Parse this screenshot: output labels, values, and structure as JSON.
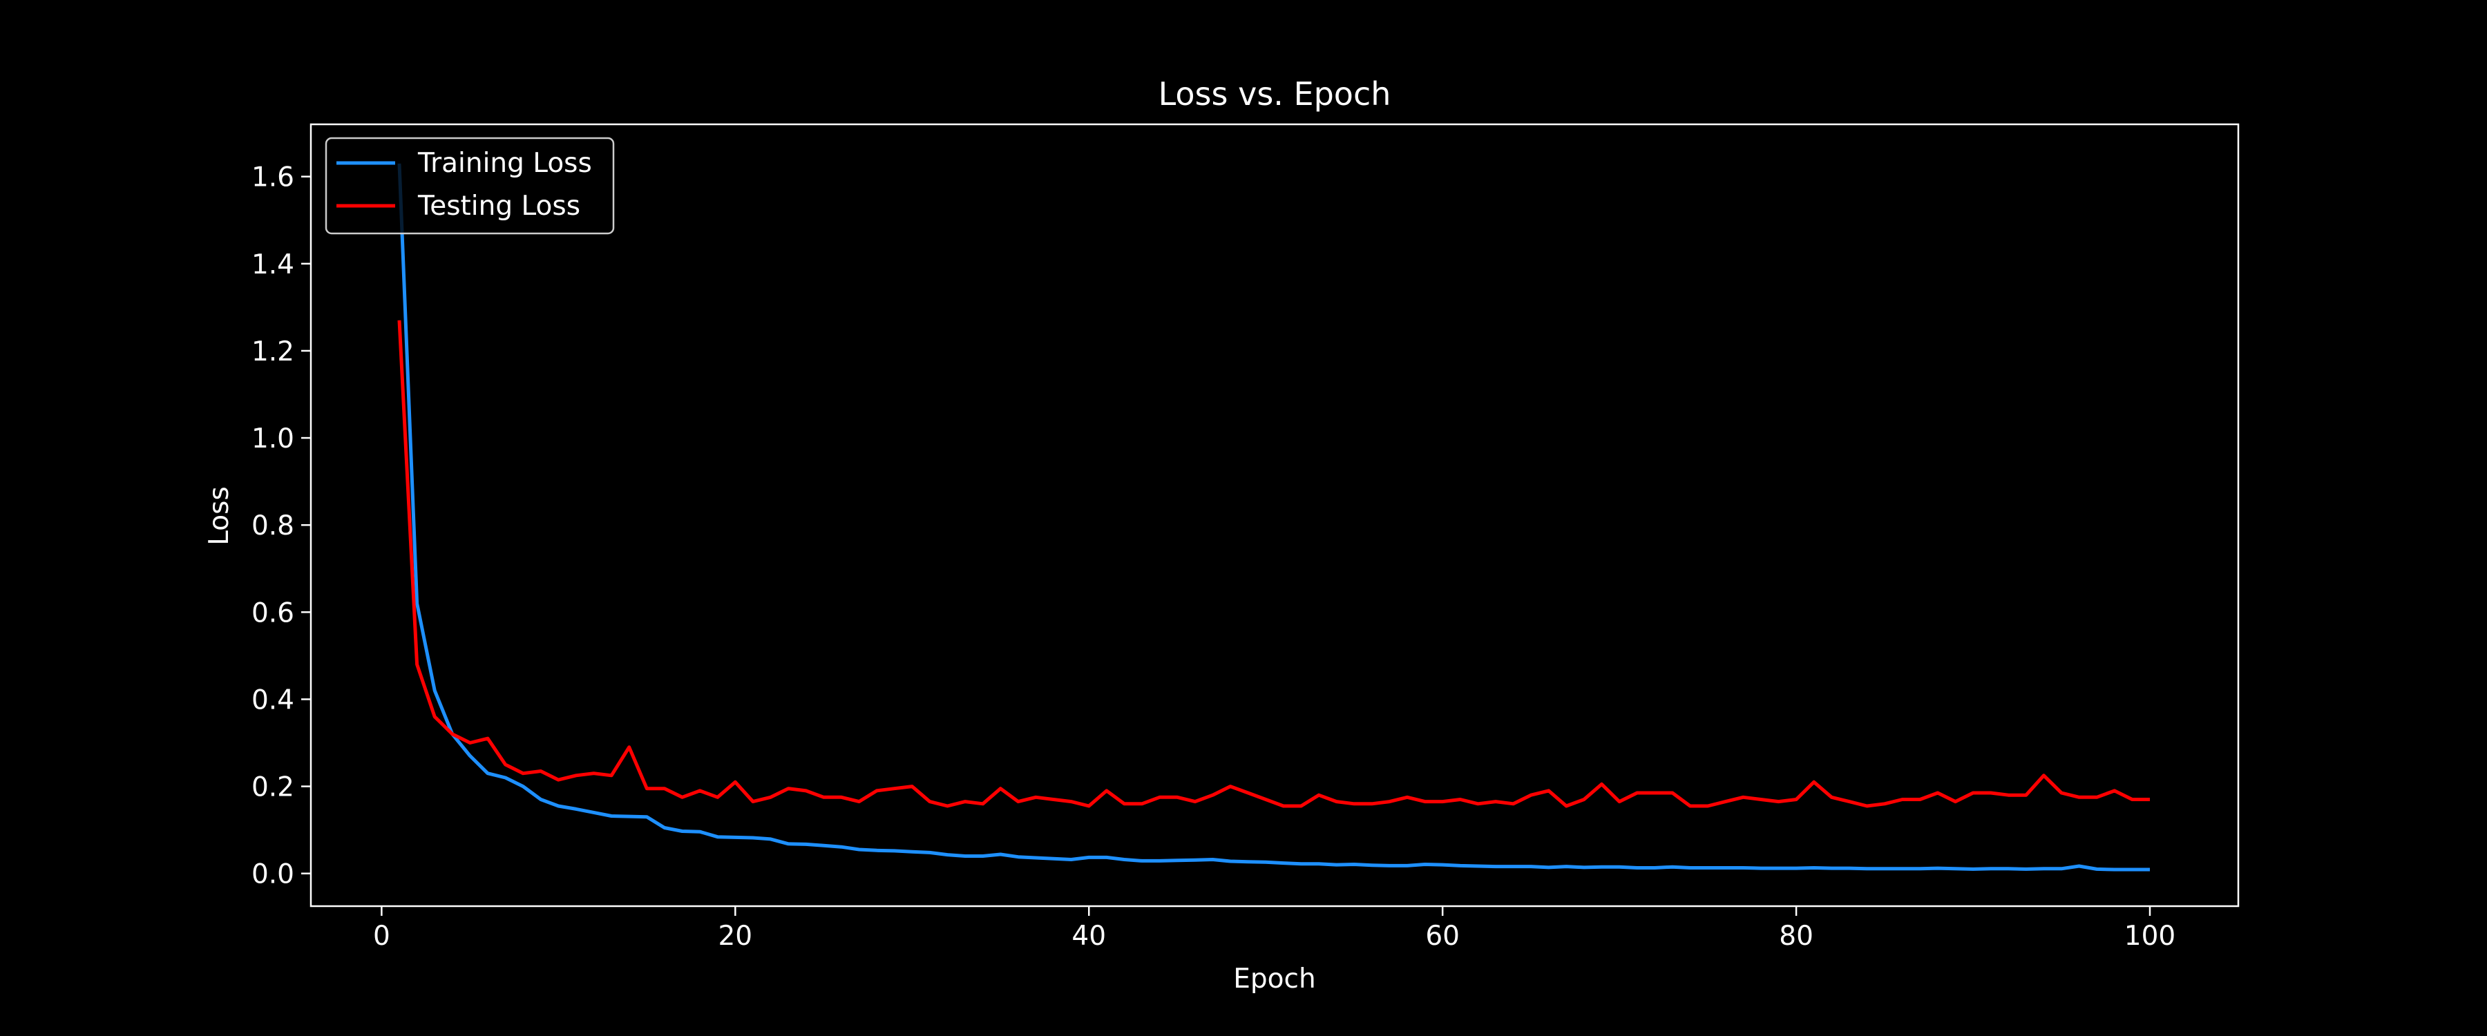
{
  "chart_data": {
    "type": "line",
    "title": "Loss vs. Epoch",
    "xlabel": "Epoch",
    "ylabel": "Loss",
    "xlim": [
      -4,
      105
    ],
    "ylim": [
      -0.075,
      1.72
    ],
    "xticks": [
      0,
      20,
      40,
      60,
      80,
      100
    ],
    "yticks": [
      0.0,
      0.2,
      0.4,
      0.6,
      0.8,
      1.0,
      1.2,
      1.4,
      1.6
    ],
    "grid": false,
    "legend_position": "top-left",
    "x": [
      1,
      2,
      3,
      4,
      5,
      6,
      7,
      8,
      9,
      10,
      11,
      12,
      13,
      14,
      15,
      16,
      17,
      18,
      19,
      20,
      21,
      22,
      23,
      24,
      25,
      26,
      27,
      28,
      29,
      30,
      31,
      32,
      33,
      34,
      35,
      36,
      37,
      38,
      39,
      40,
      41,
      42,
      43,
      44,
      45,
      46,
      47,
      48,
      49,
      50,
      51,
      52,
      53,
      54,
      55,
      56,
      57,
      58,
      59,
      60,
      61,
      62,
      63,
      64,
      65,
      66,
      67,
      68,
      69,
      70,
      71,
      72,
      73,
      74,
      75,
      76,
      77,
      78,
      79,
      80,
      81,
      82,
      83,
      84,
      85,
      86,
      87,
      88,
      89,
      90,
      91,
      92,
      93,
      94,
      95,
      96,
      97,
      98,
      99,
      100
    ],
    "series": [
      {
        "name": "Training Loss",
        "color": "#1e90ff",
        "values": [
          1.63,
          0.62,
          0.42,
          0.32,
          0.27,
          0.23,
          0.22,
          0.2,
          0.17,
          0.155,
          0.148,
          0.14,
          0.132,
          0.131,
          0.13,
          0.105,
          0.097,
          0.096,
          0.084,
          0.083,
          0.082,
          0.079,
          0.068,
          0.067,
          0.064,
          0.061,
          0.055,
          0.053,
          0.052,
          0.05,
          0.048,
          0.043,
          0.04,
          0.04,
          0.044,
          0.038,
          0.036,
          0.034,
          0.032,
          0.037,
          0.037,
          0.032,
          0.029,
          0.029,
          0.03,
          0.031,
          0.032,
          0.028,
          0.027,
          0.026,
          0.024,
          0.022,
          0.022,
          0.02,
          0.021,
          0.019,
          0.018,
          0.018,
          0.021,
          0.02,
          0.018,
          0.017,
          0.016,
          0.016,
          0.016,
          0.014,
          0.016,
          0.014,
          0.015,
          0.015,
          0.013,
          0.013,
          0.015,
          0.013,
          0.013,
          0.013,
          0.013,
          0.012,
          0.012,
          0.012,
          0.013,
          0.012,
          0.012,
          0.011,
          0.011,
          0.011,
          0.011,
          0.012,
          0.011,
          0.01,
          0.011,
          0.011,
          0.01,
          0.011,
          0.011,
          0.017,
          0.01,
          0.009,
          0.009,
          0.009
        ]
      },
      {
        "name": "Testing Loss",
        "color": "#ff0000",
        "values": [
          1.27,
          0.48,
          0.36,
          0.32,
          0.3,
          0.31,
          0.25,
          0.23,
          0.235,
          0.215,
          0.225,
          0.23,
          0.225,
          0.29,
          0.195,
          0.195,
          0.175,
          0.19,
          0.175,
          0.21,
          0.165,
          0.175,
          0.195,
          0.19,
          0.175,
          0.175,
          0.165,
          0.19,
          0.195,
          0.2,
          0.165,
          0.155,
          0.165,
          0.16,
          0.195,
          0.165,
          0.175,
          0.17,
          0.165,
          0.155,
          0.19,
          0.16,
          0.16,
          0.175,
          0.175,
          0.165,
          0.18,
          0.2,
          0.185,
          0.17,
          0.155,
          0.155,
          0.18,
          0.165,
          0.16,
          0.16,
          0.165,
          0.175,
          0.165,
          0.165,
          0.17,
          0.16,
          0.165,
          0.16,
          0.18,
          0.19,
          0.155,
          0.17,
          0.205,
          0.165,
          0.185,
          0.185,
          0.185,
          0.155,
          0.155,
          0.165,
          0.175,
          0.17,
          0.165,
          0.17,
          0.21,
          0.175,
          0.165,
          0.155,
          0.16,
          0.17,
          0.17,
          0.185,
          0.165,
          0.185,
          0.185,
          0.18,
          0.18,
          0.225,
          0.185,
          0.175,
          0.175,
          0.19,
          0.17,
          0.17
        ]
      }
    ]
  }
}
